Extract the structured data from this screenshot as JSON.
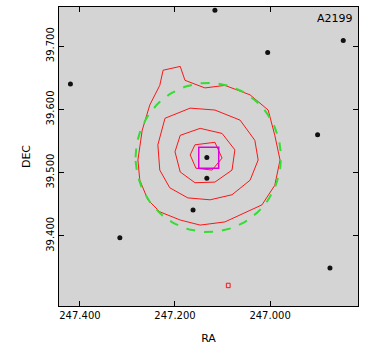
{
  "chart_data": {
    "type": "image",
    "title": "A2199",
    "x_label": "RA",
    "y_label": "DEC",
    "xlim": [
      247.444,
      246.815
    ],
    "ylim": [
      39.289,
      39.762
    ],
    "xticks": [
      {
        "value": 247.4,
        "label": "247.400"
      },
      {
        "value": 247.2,
        "label": "247.200"
      },
      {
        "value": 247.0,
        "label": "247.000"
      }
    ],
    "yticks": [
      {
        "value": 39.4,
        "label": "39.400"
      },
      {
        "value": 39.5,
        "label": "39.500"
      },
      {
        "value": 39.6,
        "label": "39.600"
      },
      {
        "value": 39.7,
        "label": "39.700"
      }
    ],
    "grid": false,
    "contours": {
      "color": "#ff0000",
      "lines": [
        {
          "ra": [
            247.225,
            247.189,
            247.179,
            247.137,
            247.095,
            247.042,
            247.004,
            246.99,
            246.979,
            246.99,
            247.017,
            247.063,
            247.095,
            247.147,
            247.189,
            247.232,
            247.257,
            247.274,
            247.278,
            247.269,
            247.253,
            247.232,
            247.225
          ],
          "dec": [
            39.662,
            39.668,
            39.646,
            39.634,
            39.638,
            39.623,
            39.599,
            39.559,
            39.52,
            39.48,
            39.449,
            39.433,
            39.422,
            39.417,
            39.425,
            39.438,
            39.457,
            39.488,
            39.52,
            39.567,
            39.607,
            39.638,
            39.662
          ]
        },
        {
          "ra": [
            247.221,
            247.168,
            247.116,
            247.063,
            247.032,
            247.025,
            247.042,
            247.08,
            247.126,
            247.173,
            247.211,
            247.232,
            247.236,
            247.221
          ],
          "dec": [
            39.586,
            39.602,
            39.599,
            39.583,
            39.551,
            39.52,
            39.488,
            39.465,
            39.457,
            39.46,
            39.476,
            39.504,
            39.544,
            39.586
          ]
        },
        {
          "ra": [
            247.189,
            247.147,
            247.101,
            247.074,
            247.08,
            247.116,
            247.158,
            247.189,
            247.2,
            247.189
          ],
          "dec": [
            39.559,
            39.57,
            39.562,
            39.536,
            39.504,
            39.485,
            39.484,
            39.501,
            39.533,
            39.559
          ]
        },
        {
          "ra": [
            247.158,
            247.116,
            247.101,
            247.122,
            247.156,
            247.168,
            247.158
          ],
          "dec": [
            39.544,
            39.548,
            39.523,
            39.504,
            39.507,
            39.528,
            39.544
          ]
        },
        {
          "ra": [
            247.092,
            247.084,
            247.084,
            247.092,
            247.092
          ],
          "dec": [
            39.325,
            39.325,
            39.318,
            39.318,
            39.325
          ]
        }
      ]
    },
    "circle": {
      "ra": 247.13,
      "dec": 39.524,
      "radius": 0.118,
      "color": "#33dd33",
      "line_style": "dashed"
    },
    "box": {
      "ra": [
        247.15,
        247.108
      ],
      "dec": [
        39.507,
        39.54
      ],
      "color": "#dd00dd"
    },
    "sources": {
      "color": "#111111",
      "ra": [
        247.133,
        247.116,
        247.316,
        246.874,
        246.846,
        247.162,
        247.133,
        247.42,
        247.005,
        246.9
      ],
      "dec": [
        39.524,
        39.757,
        39.397,
        39.349,
        39.709,
        39.441,
        39.491,
        39.64,
        39.69,
        39.56
      ]
    }
  }
}
